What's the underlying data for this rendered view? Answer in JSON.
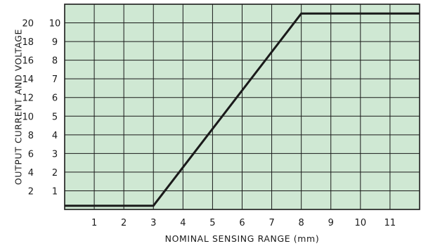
{
  "chart_data": {
    "type": "line",
    "xlabel": "NOMINAL SENSING RANGE (mm)",
    "ylabel": "OUTPUT CURRENT AND VOLTAGE",
    "x_ticks": [
      "1",
      "2",
      "3",
      "4",
      "5",
      "6",
      "7",
      "8",
      "9",
      "10",
      "11"
    ],
    "y_ticks_current": [
      "2",
      "4",
      "6",
      "8",
      "10",
      "12",
      "14",
      "16",
      "18",
      "20"
    ],
    "y_ticks_voltage": [
      "1",
      "2",
      "3",
      "4",
      "5",
      "6",
      "7",
      "8",
      "9",
      "10"
    ],
    "xlim": [
      0,
      12
    ],
    "ylim_voltage": [
      0,
      11
    ],
    "ylim_current": [
      0,
      22
    ],
    "grid": true,
    "colors": {
      "plot_background": "#cfe8d3",
      "grid": "#1a1a1a",
      "line": "#1a1a1a"
    },
    "series": [
      {
        "x": [
          0,
          3,
          8,
          12
        ],
        "y_voltage": [
          0.2,
          0.2,
          10.5,
          10.5
        ]
      }
    ]
  }
}
